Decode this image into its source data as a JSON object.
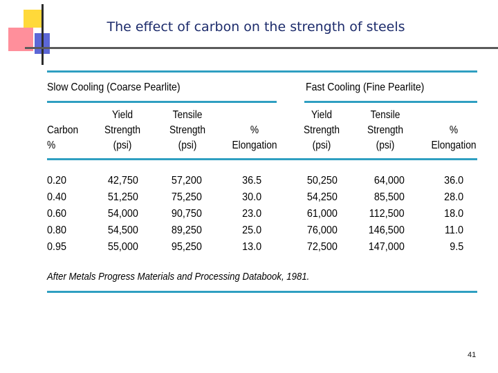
{
  "slide": {
    "title": "The effect of carbon on the strength of steels",
    "page_number": "41"
  },
  "table": {
    "groups": {
      "slow": "Slow Cooling (Coarse Pearlite)",
      "fast": "Fast Cooling (Fine Pearlite)"
    },
    "headers": {
      "carbon": [
        "Carbon",
        "%"
      ],
      "yield": [
        "Yield",
        "Strength",
        "(psi)"
      ],
      "tensile": [
        "Tensile",
        "Strength",
        "(psi)"
      ],
      "elong": [
        "%",
        "Elongation"
      ]
    },
    "rows": [
      [
        "0.20",
        "42,750",
        "57,200",
        "36.5",
        "50,250",
        "64,000",
        "36.0"
      ],
      [
        "0.40",
        "51,250",
        "75,250",
        "30.0",
        "54,250",
        "85,500",
        "28.0"
      ],
      [
        "0.60",
        "54,000",
        "90,750",
        "23.0",
        "61,000",
        "112,500",
        "18.0"
      ],
      [
        "0.80",
        "54,500",
        "89,250",
        "25.0",
        "76,000",
        "146,500",
        "11.0"
      ],
      [
        "0.95",
        "55,000",
        "95,250",
        "13.0",
        "72,500",
        "147,000",
        "9.5"
      ]
    ],
    "source": {
      "prefix": "After",
      "text": " Metals Progress Materials and Processing Databook, ",
      "year": "1981."
    }
  }
}
